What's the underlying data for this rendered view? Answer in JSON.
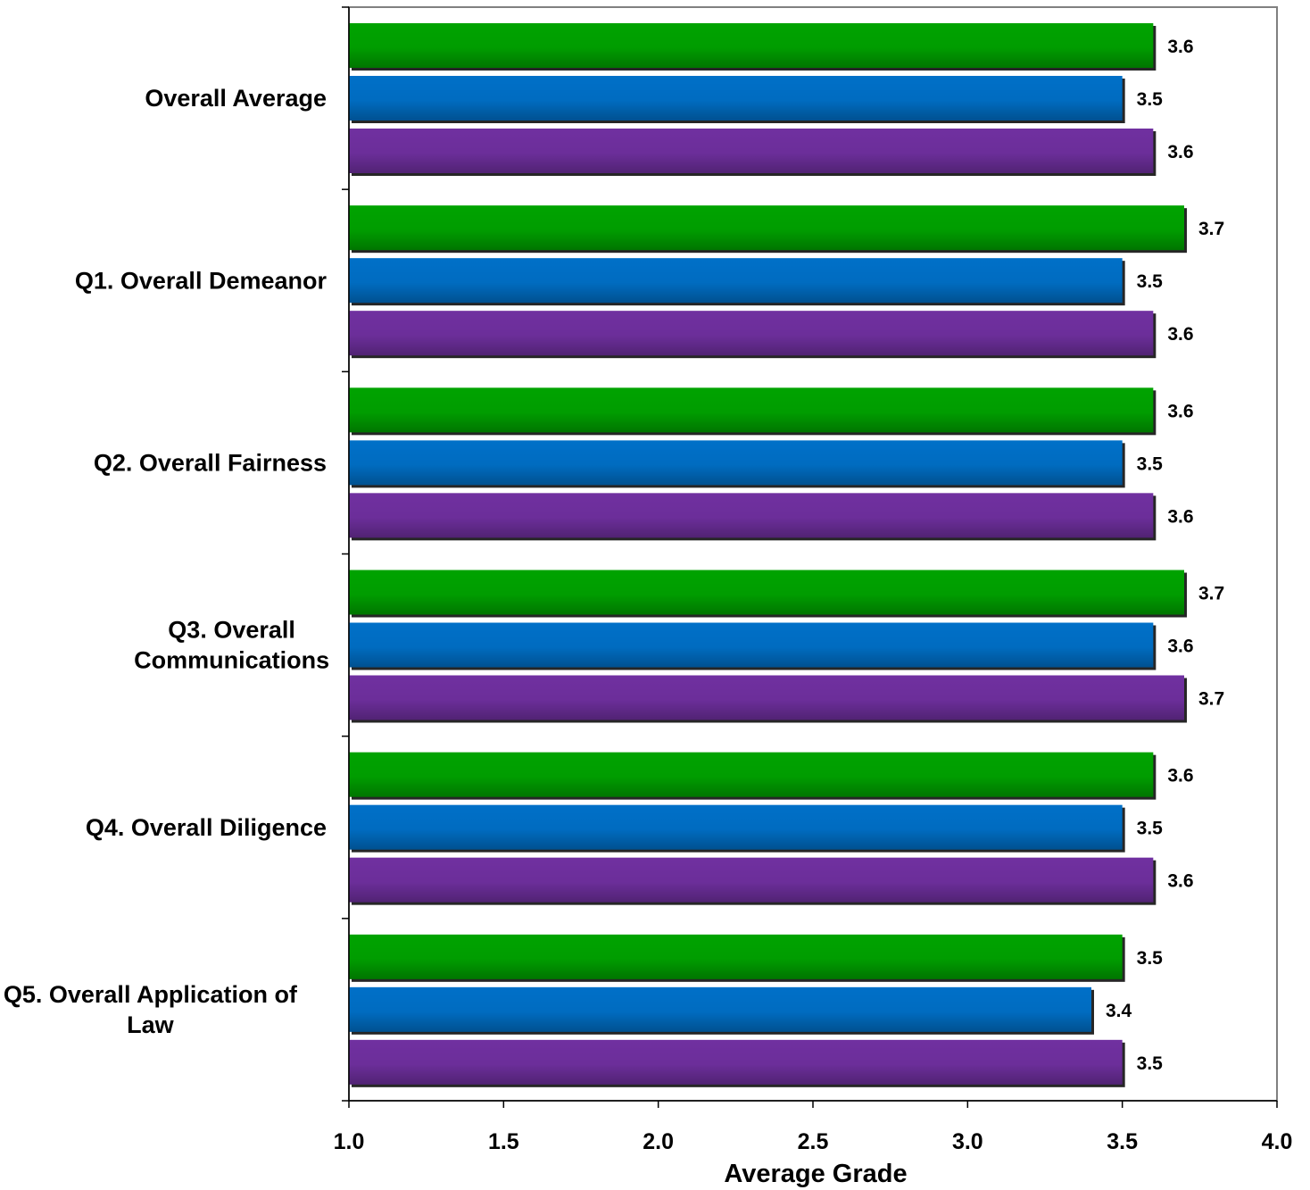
{
  "chart_data": {
    "type": "bar",
    "orientation": "horizontal",
    "categories": [
      "Overall Average",
      "Q1. Overall Demeanor",
      "Q2. Overall Fairness",
      "Q3. Overall Communications",
      "Q4. Overall Diligence",
      "Q5. Overall Application of Law"
    ],
    "category_lines": [
      [
        "Overall Average"
      ],
      [
        "Q1. Overall Demeanor"
      ],
      [
        "Q2. Overall Fairness"
      ],
      [
        "Q3. Overall",
        "Communications"
      ],
      [
        "Q4. Overall Diligence"
      ],
      [
        "Q5. Overall Application of",
        "Law"
      ]
    ],
    "series": [
      {
        "color": "#00a300",
        "values": [
          3.6,
          3.7,
          3.6,
          3.7,
          3.6,
          3.5
        ]
      },
      {
        "color": "#0070c8",
        "values": [
          3.5,
          3.5,
          3.5,
          3.6,
          3.5,
          3.4
        ]
      },
      {
        "color": "#7030a0",
        "values": [
          3.6,
          3.6,
          3.6,
          3.7,
          3.6,
          3.5
        ]
      }
    ],
    "value_labels": [
      [
        "3.6",
        "3.5",
        "3.6"
      ],
      [
        "3.7",
        "3.5",
        "3.6"
      ],
      [
        "3.6",
        "3.5",
        "3.6"
      ],
      [
        "3.7",
        "3.6",
        "3.7"
      ],
      [
        "3.6",
        "3.5",
        "3.6"
      ],
      [
        "3.5",
        "3.4",
        "3.5"
      ]
    ],
    "title": "",
    "xlabel": "Average Grade",
    "ylabel": "",
    "xlim": [
      1.0,
      4.0
    ],
    "xticks": [
      1.0,
      1.5,
      2.0,
      2.5,
      3.0,
      3.5,
      4.0
    ],
    "xtick_labels": [
      "1.0",
      "1.5",
      "2.0",
      "2.5",
      "3.0",
      "3.5",
      "4.0"
    ],
    "grid": false,
    "legend": "none"
  }
}
